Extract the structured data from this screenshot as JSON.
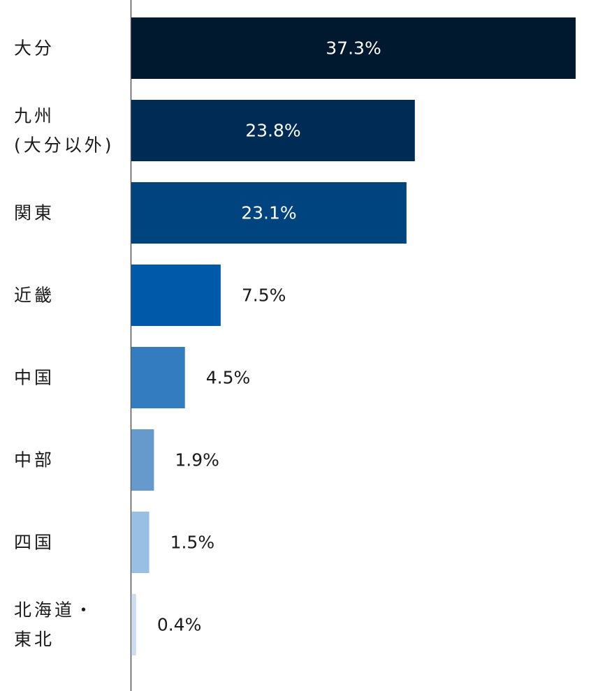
{
  "chart_data": {
    "type": "bar",
    "orientation": "horizontal",
    "title": "",
    "xlabel": "",
    "ylabel": "",
    "categories": [
      [
        "大分"
      ],
      [
        "九州",
        "(大分以外)"
      ],
      [
        "関東"
      ],
      [
        "近畿"
      ],
      [
        "中国"
      ],
      [
        "中部"
      ],
      [
        "四国"
      ],
      [
        "北海道・",
        "東北"
      ]
    ],
    "values": [
      37.3,
      23.8,
      23.1,
      7.5,
      4.5,
      1.9,
      1.5,
      0.4
    ],
    "value_labels": [
      "37.3%",
      "23.8%",
      "23.1%",
      "7.5%",
      "4.5%",
      "1.9%",
      "1.5%",
      "0.4%"
    ],
    "colors": [
      "#00192e",
      "#002b54",
      "#00447f",
      "#0059a9",
      "#337cbf",
      "#6699cc",
      "#99bfe2",
      "#ccdcee"
    ],
    "label_colors": [
      "#ffffff",
      "#ffffff",
      "#ffffff",
      "#1a1a1a",
      "#1a1a1a",
      "#1a1a1a",
      "#1a1a1a",
      "#1a1a1a"
    ],
    "grid": false,
    "legend": "none"
  }
}
